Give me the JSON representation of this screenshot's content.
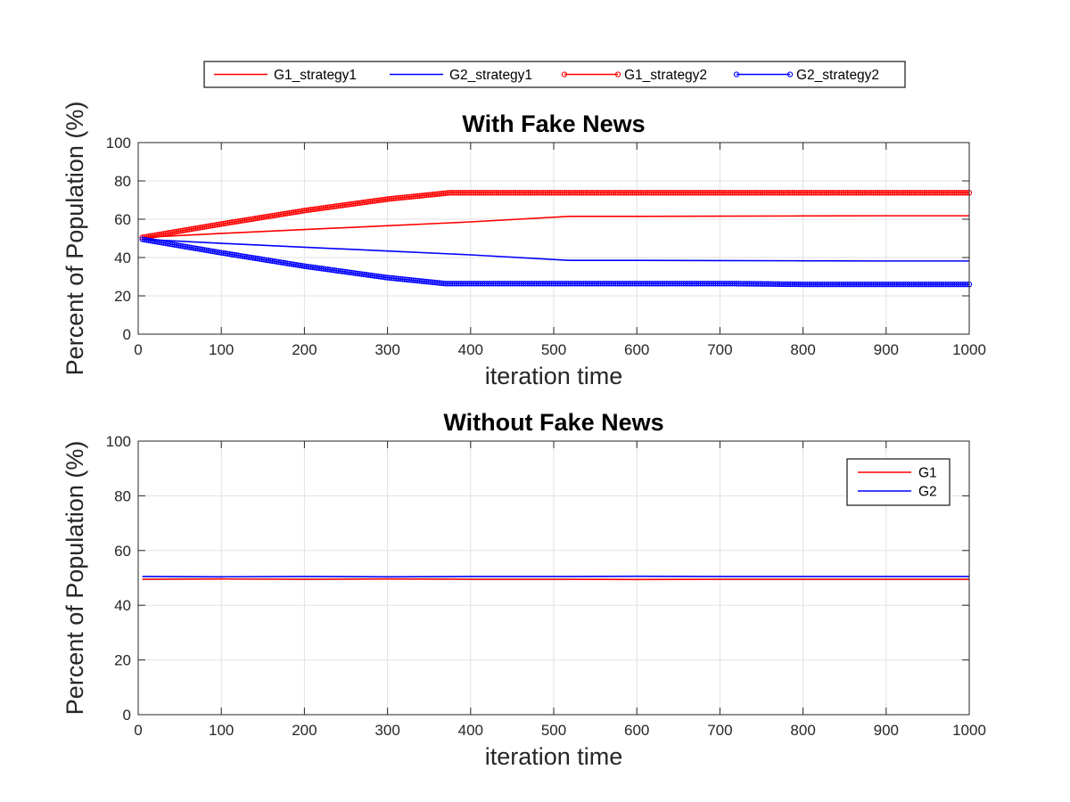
{
  "chart_data": [
    {
      "type": "line",
      "title": "With Fake News",
      "xlabel": "iteration time",
      "ylabel": "Percent of Population (%)",
      "xlim": [
        0,
        1000
      ],
      "ylim": [
        0,
        100
      ],
      "xticks": [
        0,
        100,
        200,
        300,
        400,
        500,
        600,
        700,
        800,
        900,
        1000
      ],
      "yticks": [
        0,
        20,
        40,
        60,
        80,
        100
      ],
      "grid": true,
      "legend": {
        "placement": "outside-top-center",
        "orientation": "horizontal"
      },
      "series": [
        {
          "name": "G1_strategy1",
          "color": "#ff0000",
          "marker": "none",
          "x": [
            5,
            100,
            200,
            300,
            400,
            520,
            600,
            700,
            800,
            900,
            1000
          ],
          "y": [
            50.5,
            52.6,
            54.6,
            56.6,
            58.6,
            61.5,
            61.5,
            61.6,
            61.7,
            61.8,
            61.8
          ]
        },
        {
          "name": "G2_strategy1",
          "color": "#0000ff",
          "marker": "none",
          "x": [
            5,
            100,
            200,
            300,
            400,
            520,
            600,
            700,
            800,
            900,
            1000
          ],
          "y": [
            49.5,
            47.4,
            45.4,
            43.4,
            41.4,
            38.5,
            38.5,
            38.4,
            38.3,
            38.2,
            38.2
          ]
        },
        {
          "name": "G1_strategy2",
          "color": "#ff0000",
          "marker": "circle",
          "x": [
            5,
            100,
            200,
            300,
            375,
            500,
            600,
            700,
            800,
            900,
            1000
          ],
          "y": [
            50.5,
            57.5,
            64.5,
            70.5,
            73.8,
            73.8,
            73.8,
            73.8,
            73.8,
            73.8,
            73.8
          ]
        },
        {
          "name": "G2_strategy2",
          "color": "#0000ff",
          "marker": "circle",
          "x": [
            5,
            100,
            200,
            300,
            370,
            500,
            600,
            715,
            800,
            900,
            1000
          ],
          "y": [
            49.5,
            42.5,
            35.5,
            29.5,
            26.4,
            26.4,
            26.4,
            26.4,
            26.0,
            26.0,
            26.0
          ]
        }
      ]
    },
    {
      "type": "line",
      "title": "Without Fake News",
      "xlabel": "iteration time",
      "ylabel": "Percent of Population (%)",
      "xlim": [
        0,
        1000
      ],
      "ylim": [
        0,
        100
      ],
      "xticks": [
        0,
        100,
        200,
        300,
        400,
        500,
        600,
        700,
        800,
        900,
        1000
      ],
      "yticks": [
        0,
        20,
        40,
        60,
        80,
        100
      ],
      "grid": true,
      "legend": {
        "placement": "top-right",
        "orientation": "vertical"
      },
      "series": [
        {
          "name": "G1",
          "color": "#ff0000",
          "marker": "none",
          "x": [
            5,
            100,
            200,
            300,
            400,
            500,
            600,
            700,
            800,
            900,
            1000
          ],
          "y": [
            49.5,
            49.6,
            49.5,
            49.6,
            49.5,
            49.5,
            49.4,
            49.5,
            49.5,
            49.5,
            49.5
          ]
        },
        {
          "name": "G2",
          "color": "#0000ff",
          "marker": "none",
          "x": [
            5,
            100,
            200,
            300,
            400,
            500,
            600,
            700,
            800,
            900,
            1000
          ],
          "y": [
            50.5,
            50.4,
            50.5,
            50.4,
            50.5,
            50.5,
            50.6,
            50.5,
            50.5,
            50.5,
            50.5
          ]
        }
      ]
    }
  ]
}
